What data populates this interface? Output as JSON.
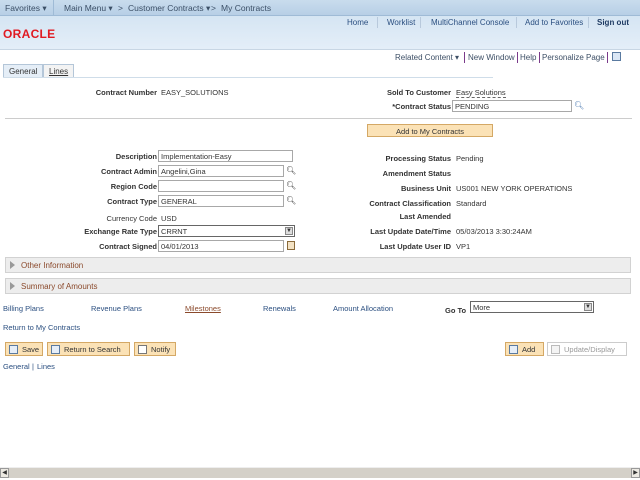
{
  "topbar": {
    "favorites": "Favorites",
    "main_menu": "Main Menu",
    "crumb1": "Customer Contracts",
    "crumb2": "My Contracts",
    "sep": ">"
  },
  "header": {
    "logo": "ORACLE",
    "links": [
      "Home",
      "Worklist",
      "MultiChannel Console",
      "Add to Favorites",
      "Sign out"
    ]
  },
  "util": {
    "related": "Related Content",
    "new_window": "New Window",
    "help": "Help",
    "personalize": "Personalize Page"
  },
  "tabs": [
    "General",
    "Lines"
  ],
  "top": {
    "contract_number_label": "Contract Number",
    "contract_number": "EASY_SOLUTIONS",
    "sold_to_label": "Sold To Customer",
    "sold_to": "Easy Solutions",
    "status_label": "*Contract Status",
    "status": "PENDING",
    "add_button": "Add to My Contracts"
  },
  "left": {
    "description_label": "Description",
    "description": "Implementation-Easy",
    "admin_label": "Contract Admin",
    "admin": "Angelini,Gina",
    "region_label": "Region Code",
    "region": "",
    "type_label": "Contract Type",
    "type": "GENERAL",
    "currency_label": "Currency Code",
    "currency": "USD",
    "rate_label": "Exchange Rate Type",
    "rate": "CRRNT",
    "signed_label": "Contract Signed",
    "signed": "04/01/2013"
  },
  "right": {
    "processing_label": "Processing Status",
    "processing": "Pending",
    "amendment_label": "Amendment Status",
    "bu_label": "Business Unit",
    "bu": "US001 NEW YORK OPERATIONS",
    "class_label": "Contract Classification",
    "class": "Standard",
    "amended_label": "Last Amended",
    "updated_label": "Last Update Date/Time",
    "updated": "05/03/2013  3:30:24AM",
    "user_label": "Last Update User ID",
    "user": "VP1"
  },
  "sections": [
    "Other Information",
    "Summary of Amounts"
  ],
  "links": {
    "billing": "Billing Plans",
    "revenue": "Revenue Plans",
    "milestones": "Milestones",
    "renewals": "Renewals",
    "allocation": "Amount Allocation",
    "goto_label": "Go To",
    "goto": "More",
    "return": "Return to My Contracts"
  },
  "buttons": {
    "save": "Save",
    "return_search": "Return to Search",
    "notify": "Notify",
    "add": "Add",
    "update": "Update/Display"
  },
  "footer": {
    "general": "General",
    "sep": "|",
    "lines": "Lines"
  },
  "colors": {
    "accent_button": "#fbe2b6",
    "link": "#2b4f80",
    "logo": "#e01a22"
  }
}
